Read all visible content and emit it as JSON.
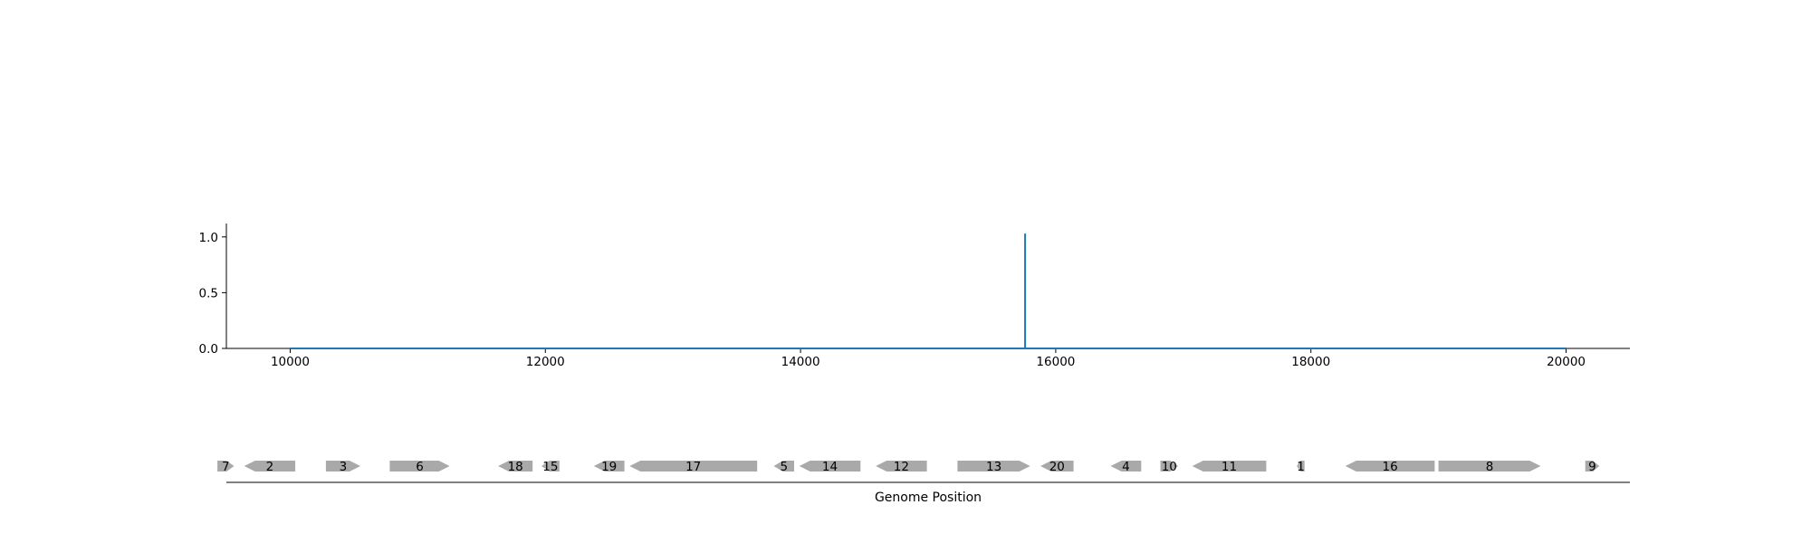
{
  "chart_data": [
    {
      "type": "line",
      "title": "",
      "xlabel": "",
      "ylabel": "",
      "xlim": [
        9500,
        20500
      ],
      "ylim": [
        0.0,
        1.12
      ],
      "x_ticks": [
        10000,
        12000,
        14000,
        16000,
        18000,
        20000
      ],
      "y_ticks": [
        0.0,
        0.5,
        1.0
      ],
      "grid": false,
      "series_color": "#1f77b4",
      "series": [
        {
          "x": [
            10000,
            15760,
            15760,
            15760,
            20000
          ],
          "y": [
            0.0,
            0.0,
            1.03,
            0.0,
            0.0
          ]
        }
      ]
    },
    {
      "type": "gene-map",
      "xlabel": "Genome Position",
      "xlim": [
        9500,
        20500
      ],
      "gene_color": "#a9a9a9",
      "genes": [
        {
          "label": "7",
          "start": 9430,
          "end": 9560,
          "strand": "+"
        },
        {
          "label": "2",
          "start": 9640,
          "end": 10040,
          "strand": "-"
        },
        {
          "label": "3",
          "start": 10280,
          "end": 10550,
          "strand": "+"
        },
        {
          "label": "6",
          "start": 10780,
          "end": 11250,
          "strand": "+"
        },
        {
          "label": "18",
          "start": 11630,
          "end": 11900,
          "strand": "-"
        },
        {
          "label": "15",
          "start": 11970,
          "end": 12110,
          "strand": "-"
        },
        {
          "label": "19",
          "start": 12380,
          "end": 12620,
          "strand": "-"
        },
        {
          "label": "17",
          "start": 12660,
          "end": 13660,
          "strand": "-"
        },
        {
          "label": "5",
          "start": 13790,
          "end": 13950,
          "strand": "-"
        },
        {
          "label": "14",
          "start": 13990,
          "end": 14470,
          "strand": "-"
        },
        {
          "label": "12",
          "start": 14590,
          "end": 14990,
          "strand": "-"
        },
        {
          "label": "13",
          "start": 15230,
          "end": 15800,
          "strand": "+"
        },
        {
          "label": "20",
          "start": 15880,
          "end": 16140,
          "strand": "-"
        },
        {
          "label": "4",
          "start": 16430,
          "end": 16670,
          "strand": "-"
        },
        {
          "label": "10",
          "start": 16820,
          "end": 16960,
          "strand": "+"
        },
        {
          "label": "11",
          "start": 17070,
          "end": 17650,
          "strand": "-"
        },
        {
          "label": "1",
          "start": 17890,
          "end": 17950,
          "strand": "-"
        },
        {
          "label": "16",
          "start": 18270,
          "end": 18970,
          "strand": "-"
        },
        {
          "label": "8",
          "start": 19000,
          "end": 19800,
          "strand": "+"
        },
        {
          "label": "9",
          "start": 20150,
          "end": 20260,
          "strand": "+"
        }
      ]
    }
  ]
}
